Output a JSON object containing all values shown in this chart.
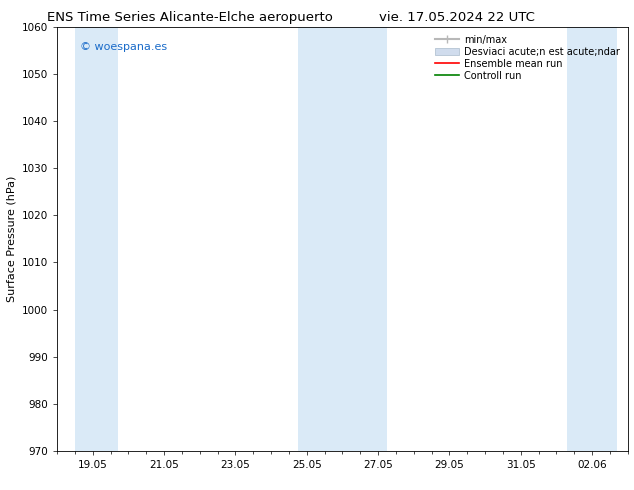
{
  "title_left": "ENS Time Series Alicante-Elche aeropuerto",
  "title_right": "vie. 17.05.2024 22 UTC",
  "ylabel": "Surface Pressure (hPa)",
  "ylim": [
    970,
    1060
  ],
  "yticks": [
    970,
    980,
    990,
    1000,
    1010,
    1020,
    1030,
    1040,
    1050,
    1060
  ],
  "bg_color": "#ffffff",
  "plot_bg_color": "#ffffff",
  "shaded_bands": [
    {
      "xstart": 18.5,
      "xend": 19.7,
      "color": "#daeaf7"
    },
    {
      "xstart": 24.75,
      "xend": 27.25,
      "color": "#daeaf7"
    },
    {
      "xstart": 32.3,
      "xend": 33.7,
      "color": "#daeaf7"
    }
  ],
  "xtick_labels": [
    "19.05",
    "21.05",
    "23.05",
    "25.05",
    "27.05",
    "29.05",
    "31.05",
    "02.06"
  ],
  "xtick_positions": [
    19.0,
    21.0,
    23.0,
    25.0,
    27.0,
    29.0,
    31.0,
    33.0
  ],
  "xmin": 18.0,
  "xmax": 33.85,
  "watermark": "© woespana.es",
  "watermark_color": "#1a6bc9",
  "legend_items": [
    {
      "label": "min/max",
      "color": "#b8b8b8",
      "type": "minmax"
    },
    {
      "label": "Desviaci acute;n est acute;ndar",
      "color": "#d0dced",
      "type": "fill"
    },
    {
      "label": "Ensemble mean run",
      "color": "#ff0000",
      "type": "line"
    },
    {
      "label": "Controll run",
      "color": "#008000",
      "type": "line"
    }
  ],
  "title_fontsize": 9.5,
  "tick_fontsize": 7.5,
  "ylabel_fontsize": 8,
  "legend_fontsize": 7
}
